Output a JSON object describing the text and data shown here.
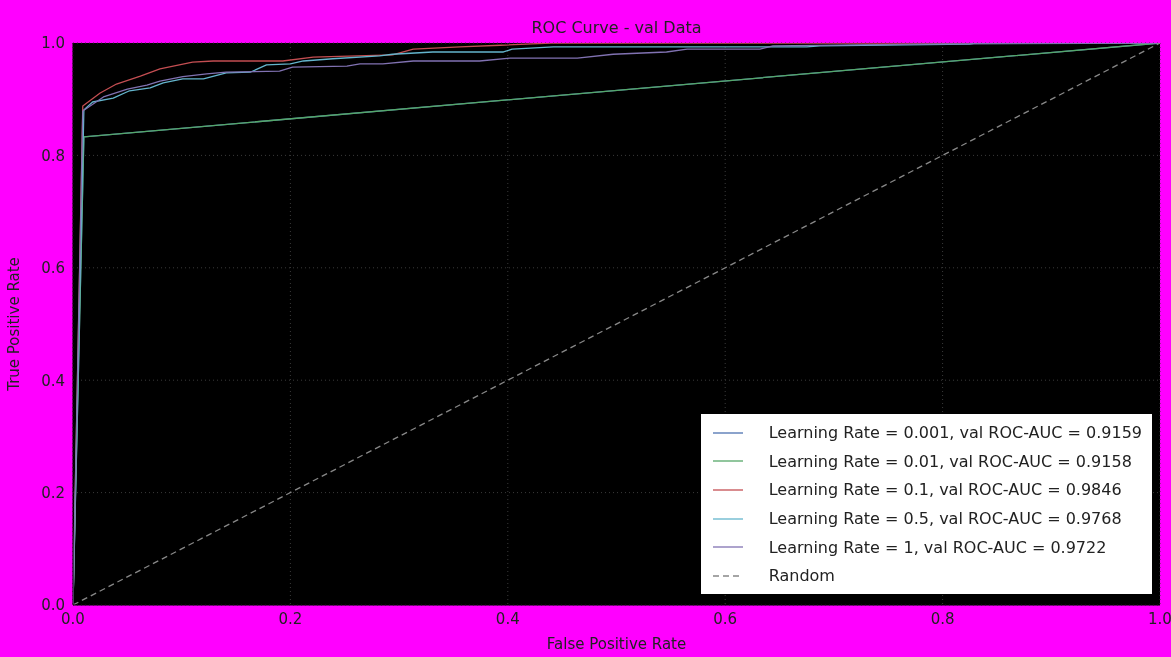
{
  "chart_data": {
    "type": "line",
    "title": "ROC Curve - val Data",
    "xlabel": "False Positive Rate",
    "ylabel": "True Positive Rate",
    "xlim": [
      0,
      1
    ],
    "ylim": [
      0,
      1
    ],
    "xticks": [
      {
        "value": 0,
        "label": "0.0"
      },
      0.2,
      0.4,
      0.6,
      0.8,
      {
        "value": 1,
        "label": "1.0"
      }
    ],
    "yticks": [
      {
        "value": 0,
        "label": "0.0"
      },
      0.2,
      0.4,
      0.6,
      0.8,
      {
        "value": 1,
        "label": "1.0"
      }
    ],
    "grid": true,
    "legend": "bottom right",
    "marker": "none",
    "line_style": "solid",
    "series": [
      {
        "name": "Learning Rate = 0.001, val ROC-AUC = 0.9159",
        "color": "#4c72b0",
        "x": [
          0,
          0.01,
          1
        ],
        "values": [
          0,
          0.833,
          1
        ]
      },
      {
        "name": "Learning Rate = 0.01, val ROC-AUC = 0.9158",
        "color": "#55a868",
        "x": [
          0,
          0.01,
          1
        ],
        "values": [
          0,
          0.833,
          1
        ]
      },
      {
        "name": "Learning Rate = 0.1, val ROC-AUC = 0.9846",
        "color": "#c44e52",
        "x": [
          0,
          0.009,
          0.025,
          0.04,
          0.062,
          0.08,
          0.11,
          0.129,
          0.193,
          0.221,
          0.294,
          0.313,
          0.356,
          0.393,
          0.44,
          1
        ],
        "values": [
          0,
          0.888,
          0.911,
          0.927,
          0.941,
          0.954,
          0.966,
          0.968,
          0.968,
          0.975,
          0.979,
          0.989,
          0.993,
          0.996,
          1,
          1
        ]
      },
      {
        "name": "Learning Rate = 0.5, val ROC-AUC = 0.9768",
        "color": "#64b5cd",
        "x": [
          0,
          0.01,
          0.018,
          0.037,
          0.052,
          0.071,
          0.083,
          0.101,
          0.12,
          0.141,
          0.163,
          0.178,
          0.2,
          0.212,
          0.239,
          0.282,
          0.294,
          0.331,
          0.396,
          0.404,
          0.442,
          0.675,
          0.687,
          0.825,
          0.83,
          1
        ],
        "values": [
          0,
          0.881,
          0.895,
          0.902,
          0.915,
          0.92,
          0.929,
          0.936,
          0.936,
          0.947,
          0.948,
          0.961,
          0.963,
          0.968,
          0.972,
          0.977,
          0.98,
          0.984,
          0.984,
          0.989,
          0.993,
          0.993,
          0.995,
          0.998,
          1,
          1
        ]
      },
      {
        "name": "Learning Rate = 1, val ROC-AUC = 0.9722",
        "color": "#8172b2",
        "x": [
          0,
          0.009,
          0.028,
          0.05,
          0.068,
          0.08,
          0.101,
          0.123,
          0.141,
          0.19,
          0.202,
          0.252,
          0.264,
          0.285,
          0.313,
          0.374,
          0.402,
          0.464,
          0.497,
          0.546,
          0.565,
          0.632,
          0.644,
          0.78,
          1
        ],
        "values": [
          0,
          0.879,
          0.904,
          0.918,
          0.925,
          0.932,
          0.94,
          0.945,
          0.948,
          0.95,
          0.957,
          0.959,
          0.963,
          0.963,
          0.968,
          0.968,
          0.973,
          0.973,
          0.98,
          0.984,
          0.989,
          0.989,
          0.995,
          0.998,
          1
        ]
      },
      {
        "name": "Random",
        "color": "#888888",
        "line_style": "dashed",
        "x": [
          0,
          1
        ],
        "values": [
          0,
          1
        ]
      }
    ]
  }
}
